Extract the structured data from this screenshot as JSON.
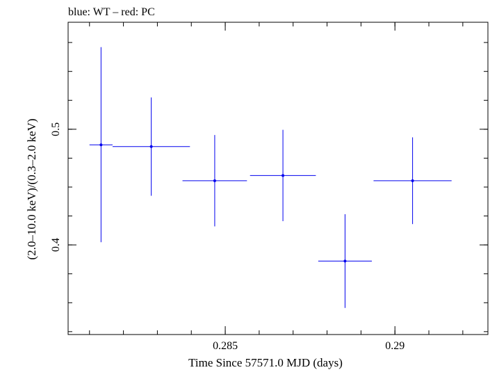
{
  "chart_data": {
    "type": "scatter",
    "title": "blue: WT – red: PC",
    "xlabel": "Time Since 57571.0 MJD (days)",
    "ylabel": "(2.0–10.0 keV)/(0.3–2.0 keV)",
    "xlim": [
      0.28037,
      0.29274
    ],
    "ylim": [
      0.3225,
      0.5925
    ],
    "x_ticks": [
      {
        "value": 0.285,
        "label": "0.285"
      },
      {
        "value": 0.29,
        "label": "0.29"
      }
    ],
    "x_minor_step": 0.001,
    "y_ticks": [
      {
        "value": 0.4,
        "label": "0.4"
      },
      {
        "value": 0.5,
        "label": "0.5"
      }
    ],
    "y_minor_step": 0.025,
    "series": [
      {
        "color": "#0000ee",
        "points": [
          {
            "x": 0.28134,
            "y": 0.4865,
            "xerr": [
              0.00034,
              0.00034
            ],
            "yerr": [
              0.0842,
              0.0845
            ]
          },
          {
            "x": 0.28282,
            "y": 0.485,
            "xerr": [
              0.00114,
              0.00114
            ],
            "yerr": [
              0.0425,
              0.0425
            ]
          },
          {
            "x": 0.28469,
            "y": 0.4555,
            "xerr": [
              0.00095,
              0.00095
            ],
            "yerr": [
              0.0395,
              0.0395
            ]
          },
          {
            "x": 0.2867,
            "y": 0.46,
            "xerr": [
              0.00097,
              0.00097
            ],
            "yerr": [
              0.0395,
              0.0395
            ]
          },
          {
            "x": 0.28853,
            "y": 0.386,
            "xerr": [
              0.00079,
              0.00079
            ],
            "yerr": [
              0.0405,
              0.0405
            ]
          },
          {
            "x": 0.29052,
            "y": 0.4555,
            "xerr": [
              0.00115,
              0.00115
            ],
            "yerr": [
              0.0375,
              0.0375
            ]
          }
        ]
      }
    ]
  }
}
